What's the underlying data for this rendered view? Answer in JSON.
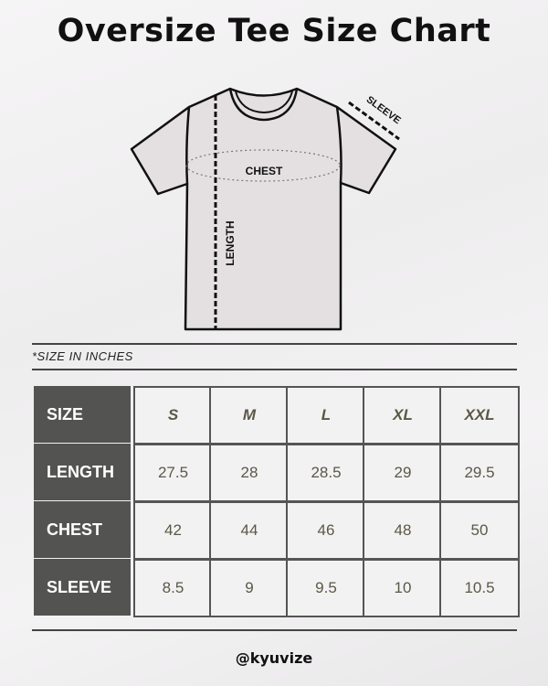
{
  "title": "Oversize Tee Size Chart",
  "diagram": {
    "chest_label": "CHEST",
    "length_label": "LENGTH",
    "sleeve_label": "SLEEVE"
  },
  "note": "*SIZE IN INCHES",
  "table": {
    "corner": "SIZE",
    "sizes": [
      "S",
      "M",
      "L",
      "XL",
      "XXL"
    ],
    "rows": [
      {
        "label": "LENGTH",
        "values": [
          "27.5",
          "28",
          "28.5",
          "29",
          "29.5"
        ]
      },
      {
        "label": "CHEST",
        "values": [
          "42",
          "44",
          "46",
          "48",
          "50"
        ]
      },
      {
        "label": "SLEEVE",
        "values": [
          "8.5",
          "9",
          "9.5",
          "10",
          "10.5"
        ]
      }
    ]
  },
  "footer": "@kyuvize",
  "colors": {
    "header_bg": "#535452",
    "shirt_fill": "#e4e0e2",
    "value_text": "#5a5845"
  }
}
